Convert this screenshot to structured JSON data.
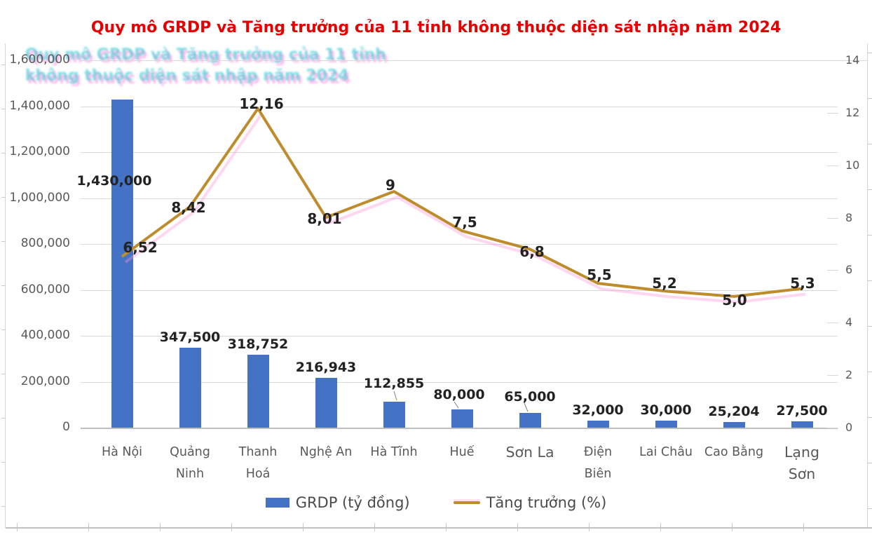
{
  "title": {
    "text": "Quy mô GRDP và Tăng trưởng của 11 tỉnh không thuộc diện sát nhập năm 2024",
    "color": "#e80000"
  },
  "legend": {
    "items": [
      {
        "label": "GRDP (tỷ đồng)",
        "swatch": "bar",
        "color": "#4472c4"
      },
      {
        "label": "Tăng trưởng (%)",
        "swatch": "line",
        "color": "#be8c2c"
      }
    ],
    "position": "bottom"
  },
  "chart_data": {
    "type": "combo-bar-line",
    "title": "Quy mô GRDP và Tăng trưởng của 11 tỉnh không thuộc diện sát nhập năm 2024",
    "categories": [
      "Hà Nội",
      "Quảng Ninh",
      "Thanh Hoá",
      "Nghệ An",
      "Hà Tĩnh",
      "Huế",
      "Sơn La",
      "Điện Biên",
      "Lai Châu",
      "Cao Bằng",
      "Lạng Sơn"
    ],
    "category_lines": [
      [
        "Hà Nội"
      ],
      [
        "Quảng",
        "Ninh"
      ],
      [
        "Thanh",
        "Hoá"
      ],
      [
        "Nghệ An"
      ],
      [
        "Hà Tĩnh"
      ],
      [
        "Huế"
      ],
      [
        "Sơn La"
      ],
      [
        "Điện",
        "Biên"
      ],
      [
        "Lai Châu"
      ],
      [
        "Cao Bằng"
      ],
      [
        "Lạng",
        "Sơn"
      ]
    ],
    "series": [
      {
        "name": "GRDP (tỷ đồng)",
        "type": "bar",
        "axis": "left",
        "color": "#4472c4",
        "values": [
          1430000,
          347500,
          318752,
          216943,
          112855,
          80000,
          65000,
          32000,
          30000,
          25204,
          27500
        ],
        "labels": [
          "1,430,000",
          "347,500",
          "318,752",
          "216,943",
          "112,855",
          "80,000",
          "65,000",
          "32,000",
          "30,000",
          "25,204",
          "27,500"
        ]
      },
      {
        "name": "Tăng trưởng (%)",
        "type": "line",
        "axis": "right",
        "color": "#be8c2c",
        "values": [
          6.52,
          8.42,
          12.16,
          8.01,
          9,
          7.5,
          6.8,
          5.5,
          5.2,
          5.0,
          5.3
        ],
        "labels": [
          "6,52",
          "8,42",
          "12,16",
          "8,01",
          "9",
          "7,5",
          "6,8",
          "5,5",
          "5,2",
          "5,0",
          "5,3"
        ]
      }
    ],
    "left_axis": {
      "min": 0,
      "max": 1600000,
      "step": 200000,
      "tick_labels": [
        "0",
        "200,000",
        "400,000",
        "600,000",
        "800,000",
        "1,000,000",
        "1,200,000",
        "1,400,000",
        "1,600,000"
      ]
    },
    "right_axis": {
      "min": 0,
      "max": 14,
      "step": 2,
      "tick_labels": [
        "0",
        "2",
        "4",
        "6",
        "8",
        "10",
        "12",
        "14"
      ]
    },
    "grid": true,
    "gridline_color": "#d9d9d9",
    "legend_position": "bottom"
  }
}
